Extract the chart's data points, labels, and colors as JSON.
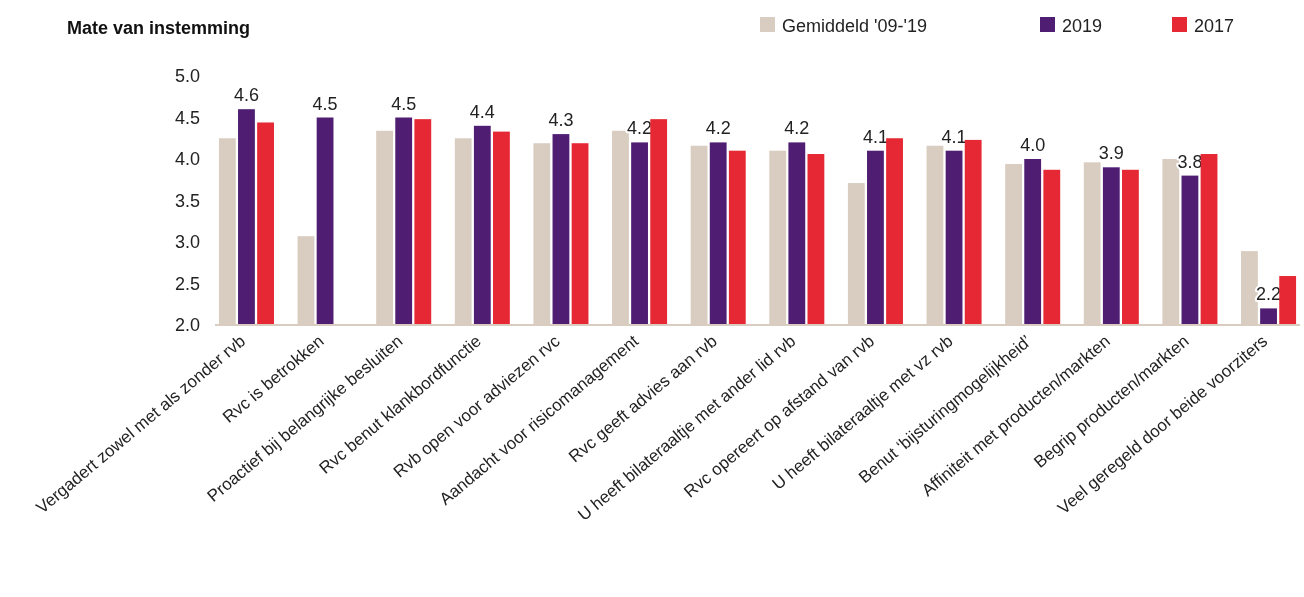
{
  "chart_data": {
    "type": "bar",
    "title": "Mate van instemming",
    "categories": [
      "Vergadert zowel met als zonder rvb",
      "Rvc is betrokken",
      "Proactief bij belangrijke besluiten",
      "Rvc benut klankbordfunctie",
      "Rvb open voor adviezen rvc",
      "Aandacht  voor risicomanagement",
      "Rvc geeft advies aan rvb",
      "U heeft bilateraaltje met ander lid rvb",
      "Rvc opereert op afstand van rvb",
      "U heeft bilateraaltje met vz rvb",
      "Benut ‘bijsturingmogelijkheid’",
      "Affiniteit met producten/markten",
      "Begrip producten/markten",
      "Veel geregeld door beide voorziters"
    ],
    "series": [
      {
        "name": "Gemiddeld '09-'19",
        "color": "#d9cdc1",
        "values": [
          4.25,
          3.07,
          4.34,
          4.25,
          4.19,
          4.34,
          4.16,
          4.1,
          3.71,
          4.16,
          3.94,
          3.96,
          4.0,
          2.89
        ]
      },
      {
        "name": "2019",
        "color": "#4f1e73",
        "values": [
          4.6,
          4.5,
          4.5,
          4.4,
          4.3,
          4.2,
          4.2,
          4.2,
          4.1,
          4.1,
          4.0,
          3.9,
          3.8,
          2.2
        ],
        "value_labels": [
          "4.6",
          "4.5",
          "4.5",
          "4.4",
          "4.3",
          "4.2",
          "4.2",
          "4.2",
          "4.1",
          "4.1",
          "4.0",
          "3.9",
          "3.8",
          "2.2"
        ]
      },
      {
        "name": "2017",
        "color": "#e52833",
        "values": [
          4.44,
          null,
          4.48,
          4.33,
          4.19,
          4.48,
          4.1,
          4.06,
          4.25,
          4.23,
          3.87,
          3.87,
          4.06,
          2.59
        ]
      }
    ],
    "ylim": [
      2.0,
      5.0
    ],
    "yticks": [
      {
        "value": 2,
        "label": "2.0"
      },
      {
        "value": 2.5,
        "label": "2.5"
      },
      {
        "value": 3,
        "label": "3.0"
      },
      {
        "value": 3.5,
        "label": "3.5"
      },
      {
        "value": 4,
        "label": "4.0"
      },
      {
        "value": 4.5,
        "label": "4.5"
      },
      {
        "value": 5,
        "label": "5.0"
      }
    ],
    "grid": false,
    "legend": "top right"
  }
}
